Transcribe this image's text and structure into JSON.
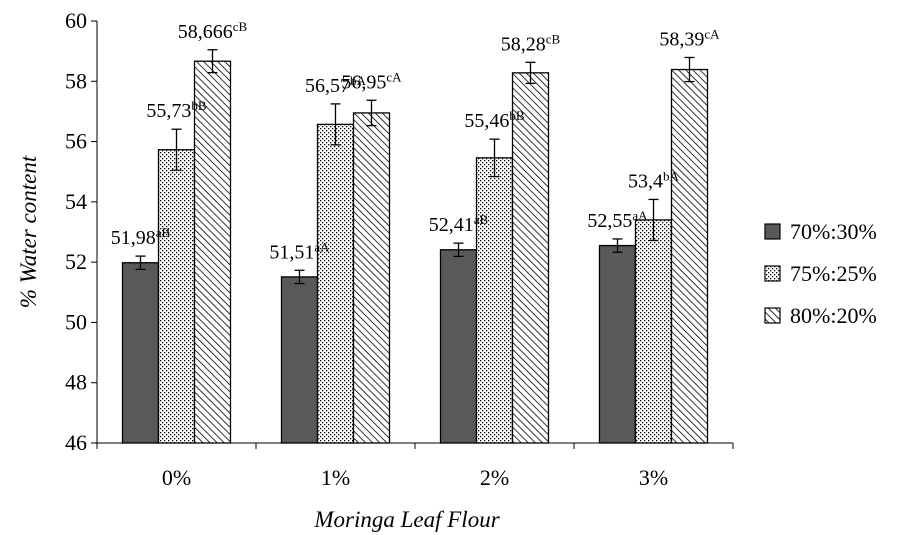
{
  "chart_data": {
    "type": "bar",
    "xlabel": "Moringa Leaf Flour",
    "ylabel": "% Water content",
    "categories": [
      "0%",
      "1%",
      "2%",
      "3%"
    ],
    "ylim": [
      46,
      60
    ],
    "yticks": [
      46,
      48,
      50,
      52,
      54,
      56,
      58,
      60
    ],
    "grid": false,
    "legend_position": "right",
    "series": [
      {
        "name": "70%:30%",
        "pattern": "solid-dark",
        "fill": "#595959",
        "values": [
          51.98,
          51.51,
          52.41,
          52.55
        ],
        "errors": [
          0.22,
          0.22,
          0.22,
          0.22
        ],
        "labels": [
          "51,98",
          "51,51",
          "52,41",
          "52,55"
        ],
        "letters": [
          "aB",
          "aA",
          "aB",
          "aA"
        ]
      },
      {
        "name": "75%:25%",
        "pattern": "dots",
        "fill": "#ffffff",
        "values": [
          55.73,
          56.57,
          55.46,
          53.4
        ],
        "errors": [
          0.68,
          0.68,
          0.62,
          0.68
        ],
        "labels": [
          "55,73",
          "56,57",
          "55,46",
          "53,4"
        ],
        "letters": [
          "bB",
          "bA",
          "bB",
          "bA"
        ]
      },
      {
        "name": "80%:20%",
        "pattern": "diagonal",
        "fill": "#ffffff",
        "values": [
          58.666,
          56.95,
          58.28,
          58.39
        ],
        "errors": [
          0.38,
          0.42,
          0.35,
          0.4
        ],
        "labels": [
          "58,666",
          "56,95",
          "58,28",
          "58,39"
        ],
        "letters": [
          "cB",
          "cA",
          "cB",
          "cA"
        ]
      }
    ]
  }
}
